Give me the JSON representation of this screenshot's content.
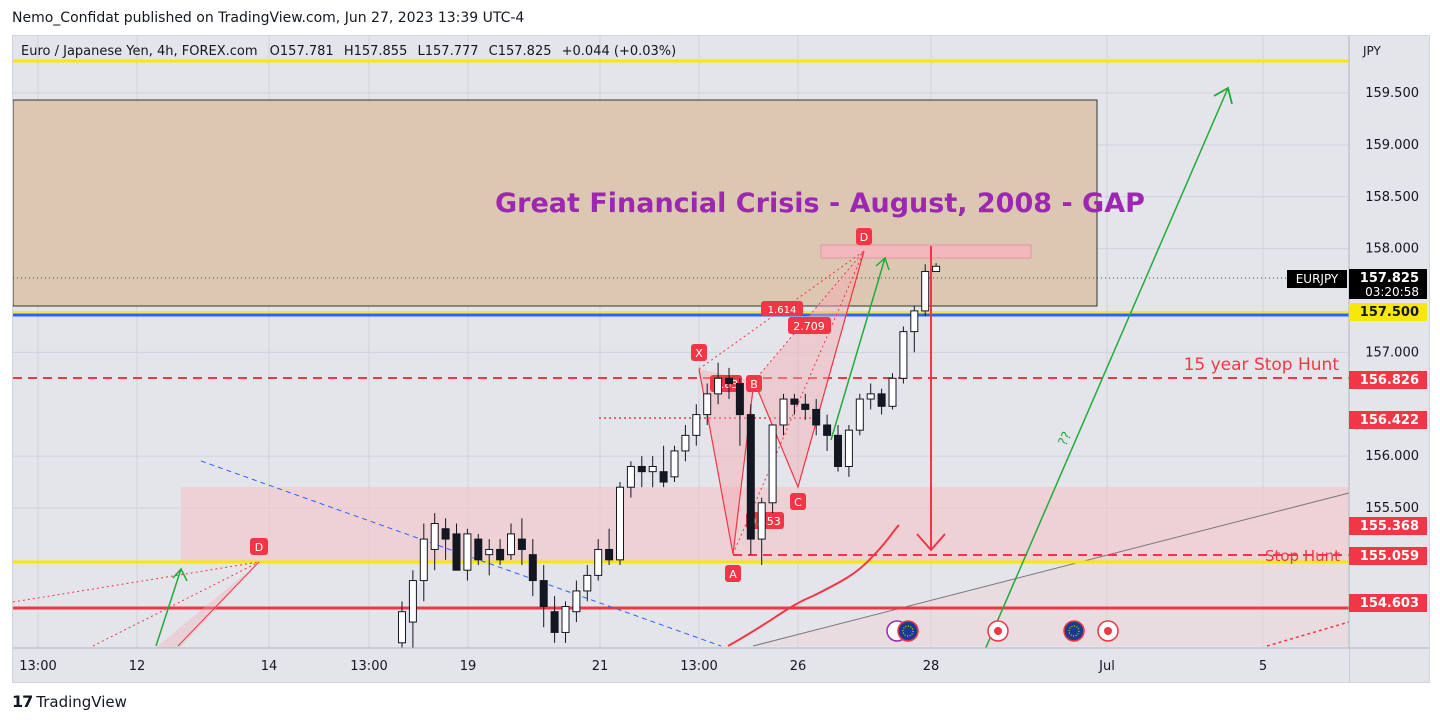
{
  "publisher_line": "Nemo_Confidat published on TradingView.com, Jun 27, 2023 13:39 UTC-4",
  "brand": {
    "logo": "17",
    "name": "TradingView"
  },
  "legend": {
    "symbol": "Euro / Japanese Yen, 4h, FOREX.com",
    "o_label": "O",
    "o": "157.781",
    "h_label": "H",
    "h": "157.855",
    "l_label": "L",
    "l": "157.777",
    "c_label": "C",
    "c": "157.825",
    "change": "+0.044 (+0.03%)"
  },
  "chart_data": {
    "type": "candlestick",
    "currency": "JPY",
    "y_ticks": [
      "159.500",
      "159.000",
      "158.500",
      "158.000",
      "157.000",
      "156.000",
      "155.500"
    ],
    "y_tick_values": [
      159.5,
      159.0,
      158.5,
      158.0,
      157.0,
      156.0,
      155.5
    ],
    "x_ticks": [
      "13:00",
      "12",
      "14",
      "13:00",
      "19",
      "21",
      "13:00",
      "26",
      "28",
      "Jul",
      "5"
    ],
    "ylim": [
      154.15,
      160.05
    ],
    "price_badges": [
      {
        "label": "EURJPY",
        "value": "157.825",
        "sub": "03:20:58",
        "color": "#000000"
      },
      {
        "value": "157.500",
        "color": "#f7e70b"
      },
      {
        "value": "156.826",
        "color": "#f23645"
      },
      {
        "value": "156.422",
        "color": "#f23645"
      },
      {
        "value": "155.368",
        "color": "#f23645"
      },
      {
        "value": "155.059",
        "color": "#f23645"
      },
      {
        "value": "154.603",
        "color": "#f23645"
      }
    ],
    "annotations": {
      "gap_title": "Great Financial Crisis - August, 2008 - GAP",
      "stop_hunt_15": "15 year Stop Hunt",
      "stop_hunt": "Stop Hunt",
      "question": "??",
      "harmonic": [
        {
          "label": "X",
          "price": 157.08
        },
        {
          "label": "A",
          "price": 154.95
        },
        {
          "label": "B",
          "price": 156.82
        },
        {
          "label": "C",
          "price": 155.78
        },
        {
          "label": "D",
          "price": 158.12
        }
      ],
      "ratios": [
        "0.83",
        "2.709",
        "0.553",
        "1.614"
      ],
      "early_pattern_label": "D"
    },
    "levels": {
      "yellow": [
        160.05,
        155.0
      ],
      "blue": 157.5,
      "red_solid": 154.6,
      "red_dashed": [
        156.83,
        155.06
      ]
    },
    "zones": [
      {
        "name": "gap",
        "from": 157.6,
        "to": 159.6
      },
      {
        "name": "demand",
        "from": 155.0,
        "to": 155.75
      }
    ],
    "candles": [
      [
        154.2,
        154.6,
        154.0,
        154.5
      ],
      [
        154.4,
        154.9,
        154.1,
        154.8
      ],
      [
        154.8,
        155.35,
        154.6,
        155.2
      ],
      [
        155.1,
        155.45,
        154.9,
        155.35
      ],
      [
        155.3,
        155.4,
        155.0,
        155.2
      ],
      [
        155.25,
        155.35,
        154.9,
        154.9
      ],
      [
        154.9,
        155.3,
        154.8,
        155.25
      ],
      [
        155.2,
        155.25,
        154.95,
        155.0
      ],
      [
        155.05,
        155.2,
        154.85,
        155.1
      ],
      [
        155.1,
        155.2,
        154.95,
        155.0
      ],
      [
        155.05,
        155.35,
        155.0,
        155.25
      ],
      [
        155.2,
        155.4,
        154.95,
        155.1
      ],
      [
        155.05,
        155.2,
        154.65,
        154.8
      ],
      [
        154.8,
        154.95,
        154.35,
        154.55
      ],
      [
        154.5,
        154.65,
        154.2,
        154.3
      ],
      [
        154.3,
        154.6,
        154.2,
        154.55
      ],
      [
        154.5,
        154.8,
        154.4,
        154.7
      ],
      [
        154.7,
        154.95,
        154.6,
        154.85
      ],
      [
        154.85,
        155.2,
        154.8,
        155.1
      ],
      [
        155.1,
        155.3,
        154.95,
        155.0
      ],
      [
        155.0,
        155.75,
        154.95,
        155.7
      ],
      [
        155.7,
        155.95,
        155.6,
        155.9
      ],
      [
        155.9,
        156.0,
        155.7,
        155.85
      ],
      [
        155.85,
        156.0,
        155.7,
        155.9
      ],
      [
        155.85,
        156.1,
        155.7,
        155.75
      ],
      [
        155.8,
        156.1,
        155.75,
        156.05
      ],
      [
        156.05,
        156.3,
        155.95,
        156.2
      ],
      [
        156.2,
        156.5,
        156.1,
        156.4
      ],
      [
        156.4,
        156.7,
        156.3,
        156.6
      ],
      [
        156.6,
        156.9,
        156.5,
        156.75
      ],
      [
        156.75,
        156.85,
        156.55,
        156.7
      ],
      [
        156.7,
        156.75,
        156.1,
        156.4
      ],
      [
        156.4,
        156.5,
        155.05,
        155.2
      ],
      [
        155.2,
        155.6,
        154.95,
        155.55
      ],
      [
        155.55,
        156.3,
        155.45,
        156.3
      ],
      [
        156.3,
        156.6,
        156.2,
        156.55
      ],
      [
        156.55,
        156.6,
        156.4,
        156.5
      ],
      [
        156.5,
        156.6,
        156.35,
        156.45
      ],
      [
        156.45,
        156.55,
        156.2,
        156.3
      ],
      [
        156.3,
        156.4,
        156.05,
        156.2
      ],
      [
        156.2,
        156.3,
        155.85,
        155.9
      ],
      [
        155.9,
        156.3,
        155.8,
        156.25
      ],
      [
        156.25,
        156.6,
        156.2,
        156.55
      ],
      [
        156.55,
        156.7,
        156.45,
        156.6
      ],
      [
        156.6,
        156.65,
        156.4,
        156.48
      ],
      [
        156.48,
        156.8,
        156.45,
        156.75
      ],
      [
        156.75,
        157.25,
        156.7,
        157.2
      ],
      [
        157.2,
        157.45,
        157.0,
        157.4
      ],
      [
        157.4,
        157.85,
        157.35,
        157.78
      ],
      [
        157.78,
        157.86,
        157.78,
        157.83
      ]
    ]
  }
}
